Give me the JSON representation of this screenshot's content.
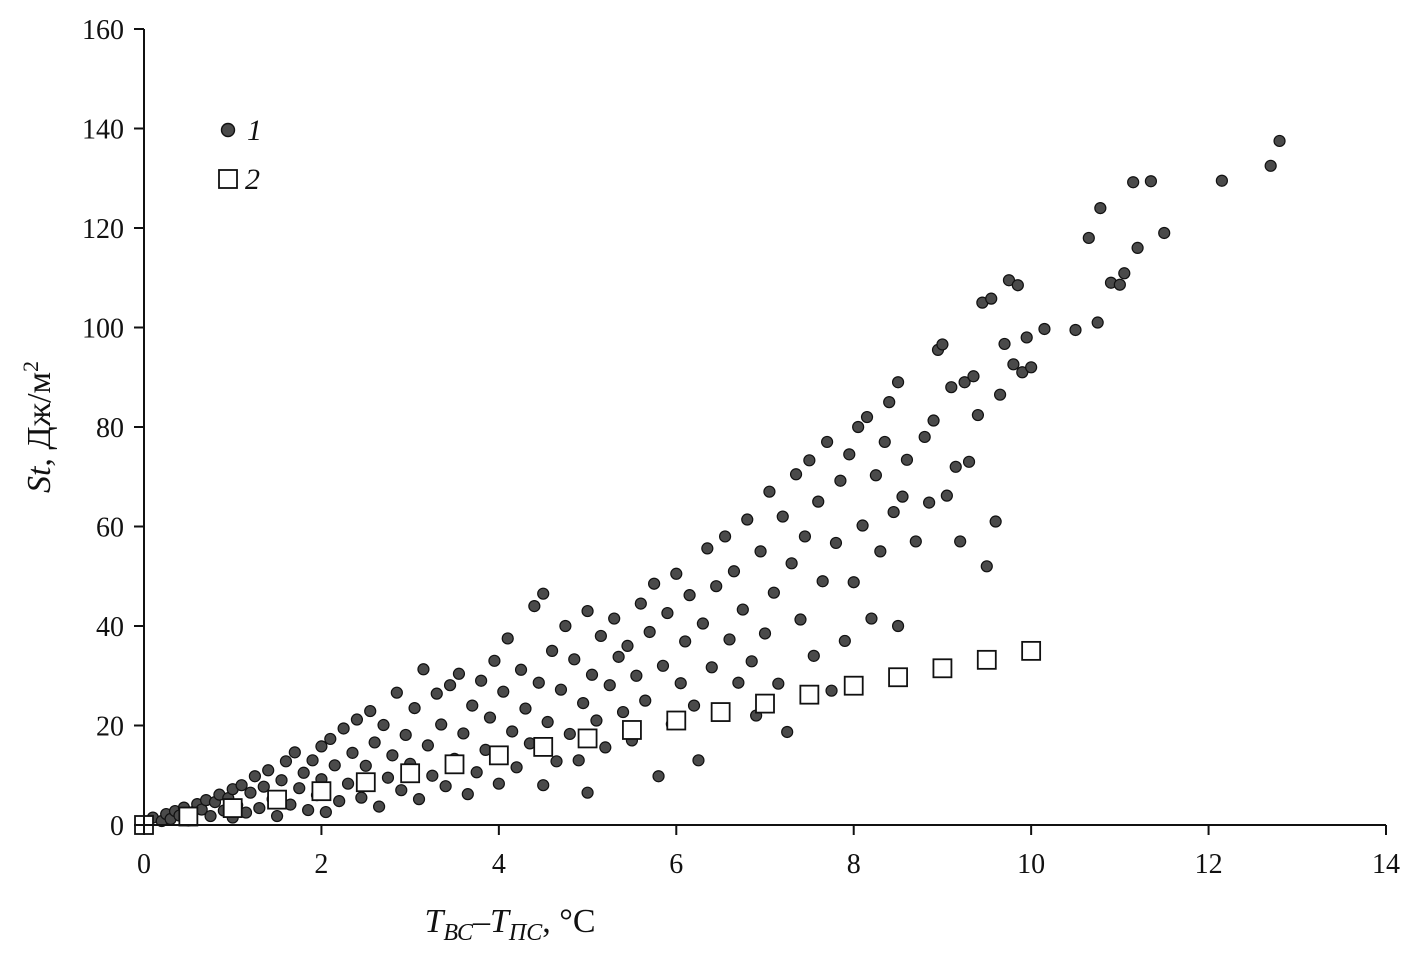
{
  "chart_data": {
    "type": "scatter",
    "xlim": [
      0,
      14
    ],
    "ylim": [
      0,
      160
    ],
    "x_ticks": [
      0,
      2,
      4,
      6,
      8,
      10,
      12,
      14
    ],
    "y_ticks": [
      0,
      20,
      40,
      60,
      80,
      100,
      120,
      140,
      160
    ],
    "grid": false,
    "legend_position": "top-left",
    "xlabel": {
      "t1": "T",
      "s1": "ВС",
      "dash": "–",
      "t2": "T",
      "s2": "ПС",
      "unit": ", °C"
    },
    "ylabel": {
      "sym": "St",
      "unit": ", Дж/м",
      "sup": "2"
    },
    "colors": {
      "series1_fill": "#4a4a4a",
      "series1_stroke": "#111111",
      "series2_fill": "#ffffff",
      "series2_stroke": "#111111",
      "axis": "#111111"
    },
    "series": [
      {
        "name": "1",
        "marker": "circle",
        "points": [
          [
            0.1,
            1.5
          ],
          [
            0.2,
            0.8
          ],
          [
            0.25,
            2.2
          ],
          [
            0.3,
            1.2
          ],
          [
            0.35,
            2.8
          ],
          [
            0.4,
            1.9
          ],
          [
            0.45,
            3.5
          ],
          [
            0.5,
            0.9
          ],
          [
            0.55,
            2.6
          ],
          [
            0.6,
            4.2
          ],
          [
            0.65,
            3.1
          ],
          [
            0.7,
            5.0
          ],
          [
            0.75,
            1.8
          ],
          [
            0.8,
            4.6
          ],
          [
            0.85,
            6.1
          ],
          [
            0.9,
            2.9
          ],
          [
            0.95,
            5.4
          ],
          [
            1.0,
            7.2
          ],
          [
            1.0,
            1.5
          ],
          [
            1.05,
            4.0
          ],
          [
            1.1,
            8.0
          ],
          [
            1.15,
            2.5
          ],
          [
            1.2,
            6.5
          ],
          [
            1.25,
            9.8
          ],
          [
            1.3,
            3.4
          ],
          [
            1.35,
            7.7
          ],
          [
            1.4,
            11.0
          ],
          [
            1.45,
            5.2
          ],
          [
            1.5,
            1.8
          ],
          [
            1.55,
            9.0
          ],
          [
            1.6,
            12.8
          ],
          [
            1.65,
            4.1
          ],
          [
            1.7,
            14.6
          ],
          [
            1.75,
            7.4
          ],
          [
            1.8,
            10.5
          ],
          [
            1.85,
            3.0
          ],
          [
            1.9,
            13.0
          ],
          [
            1.95,
            6.0
          ],
          [
            2.0,
            15.8
          ],
          [
            2.0,
            9.2
          ],
          [
            2.05,
            2.6
          ],
          [
            2.1,
            17.3
          ],
          [
            2.15,
            12.0
          ],
          [
            2.2,
            4.8
          ],
          [
            2.25,
            19.4
          ],
          [
            2.3,
            8.3
          ],
          [
            2.35,
            14.5
          ],
          [
            2.4,
            21.2
          ],
          [
            2.45,
            5.5
          ],
          [
            2.5,
            11.9
          ],
          [
            2.55,
            22.9
          ],
          [
            2.6,
            16.6
          ],
          [
            2.65,
            3.7
          ],
          [
            2.7,
            20.1
          ],
          [
            2.75,
            9.5
          ],
          [
            2.8,
            14.0
          ],
          [
            2.85,
            26.6
          ],
          [
            2.9,
            7.0
          ],
          [
            2.95,
            18.1
          ],
          [
            3.0,
            12.3
          ],
          [
            3.05,
            23.5
          ],
          [
            3.1,
            5.2
          ],
          [
            3.15,
            31.3
          ],
          [
            3.2,
            16.0
          ],
          [
            3.25,
            9.9
          ],
          [
            3.3,
            26.4
          ],
          [
            3.35,
            20.2
          ],
          [
            3.4,
            7.8
          ],
          [
            3.45,
            28.1
          ],
          [
            3.5,
            13.3
          ],
          [
            3.55,
            30.4
          ],
          [
            3.6,
            18.4
          ],
          [
            3.65,
            6.2
          ],
          [
            3.7,
            24.0
          ],
          [
            3.75,
            10.6
          ],
          [
            3.8,
            29.0
          ],
          [
            3.85,
            15.1
          ],
          [
            3.9,
            21.6
          ],
          [
            3.95,
            33.0
          ],
          [
            4.0,
            8.3
          ],
          [
            4.05,
            26.8
          ],
          [
            4.1,
            37.5
          ],
          [
            4.15,
            18.8
          ],
          [
            4.2,
            11.6
          ],
          [
            4.25,
            31.2
          ],
          [
            4.3,
            23.4
          ],
          [
            4.35,
            16.4
          ],
          [
            4.4,
            44.0
          ],
          [
            4.45,
            28.6
          ],
          [
            4.5,
            8.0
          ],
          [
            4.5,
            46.5
          ],
          [
            4.55,
            20.7
          ],
          [
            4.6,
            35.0
          ],
          [
            4.65,
            12.8
          ],
          [
            4.7,
            27.2
          ],
          [
            4.75,
            40.0
          ],
          [
            4.8,
            18.3
          ],
          [
            4.85,
            33.3
          ],
          [
            4.9,
            13.0
          ],
          [
            4.95,
            24.5
          ],
          [
            5.0,
            6.5
          ],
          [
            5.0,
            43.0
          ],
          [
            5.05,
            30.2
          ],
          [
            5.1,
            21.0
          ],
          [
            5.15,
            38.0
          ],
          [
            5.2,
            15.6
          ],
          [
            5.25,
            28.1
          ],
          [
            5.3,
            41.5
          ],
          [
            5.35,
            33.8
          ],
          [
            5.4,
            22.7
          ],
          [
            5.45,
            36.0
          ],
          [
            5.5,
            17.0
          ],
          [
            5.55,
            30.0
          ],
          [
            5.6,
            44.5
          ],
          [
            5.65,
            25.0
          ],
          [
            5.7,
            38.8
          ],
          [
            5.75,
            48.5
          ],
          [
            5.8,
            9.8
          ],
          [
            5.85,
            32.0
          ],
          [
            5.9,
            42.6
          ],
          [
            5.95,
            20.3
          ],
          [
            6.0,
            50.5
          ],
          [
            6.05,
            28.5
          ],
          [
            6.1,
            36.9
          ],
          [
            6.15,
            46.2
          ],
          [
            6.2,
            24.0
          ],
          [
            6.25,
            13.0
          ],
          [
            6.3,
            40.5
          ],
          [
            6.35,
            55.6
          ],
          [
            6.4,
            31.7
          ],
          [
            6.45,
            48.0
          ],
          [
            6.5,
            22.0
          ],
          [
            6.55,
            58.0
          ],
          [
            6.6,
            37.3
          ],
          [
            6.65,
            51.0
          ],
          [
            6.7,
            28.6
          ],
          [
            6.75,
            43.3
          ],
          [
            6.8,
            61.4
          ],
          [
            6.85,
            32.9
          ],
          [
            6.9,
            22.0
          ],
          [
            6.95,
            55.0
          ],
          [
            7.0,
            38.5
          ],
          [
            7.05,
            67.0
          ],
          [
            7.1,
            46.7
          ],
          [
            7.15,
            28.4
          ],
          [
            7.2,
            62.0
          ],
          [
            7.25,
            18.7
          ],
          [
            7.3,
            52.6
          ],
          [
            7.35,
            70.5
          ],
          [
            7.4,
            41.3
          ],
          [
            7.45,
            58.0
          ],
          [
            7.5,
            73.3
          ],
          [
            7.55,
            34.0
          ],
          [
            7.6,
            65.0
          ],
          [
            7.65,
            49.0
          ],
          [
            7.7,
            77.0
          ],
          [
            7.75,
            27.0
          ],
          [
            7.8,
            56.7
          ],
          [
            7.85,
            69.2
          ],
          [
            7.9,
            37.0
          ],
          [
            7.95,
            74.5
          ],
          [
            8.0,
            48.8
          ],
          [
            8.05,
            80.0
          ],
          [
            8.1,
            60.2
          ],
          [
            8.15,
            82.0
          ],
          [
            8.2,
            41.5
          ],
          [
            8.25,
            70.3
          ],
          [
            8.3,
            55.0
          ],
          [
            8.35,
            77.0
          ],
          [
            8.4,
            85.0
          ],
          [
            8.45,
            62.9
          ],
          [
            8.5,
            40.0
          ],
          [
            8.5,
            89.0
          ],
          [
            8.55,
            66.0
          ],
          [
            8.6,
            73.4
          ],
          [
            8.7,
            57.0
          ],
          [
            8.8,
            78.0
          ],
          [
            8.85,
            64.8
          ],
          [
            8.9,
            81.3
          ],
          [
            8.95,
            95.5
          ],
          [
            9.0,
            96.6
          ],
          [
            9.05,
            66.2
          ],
          [
            9.1,
            88.0
          ],
          [
            9.15,
            72.0
          ],
          [
            9.2,
            57.0
          ],
          [
            9.25,
            89.0
          ],
          [
            9.3,
            73.0
          ],
          [
            9.35,
            90.2
          ],
          [
            9.4,
            82.4
          ],
          [
            9.45,
            105.0
          ],
          [
            9.5,
            52.0
          ],
          [
            9.55,
            105.8
          ],
          [
            9.6,
            61.0
          ],
          [
            9.65,
            86.5
          ],
          [
            9.7,
            96.7
          ],
          [
            9.75,
            109.5
          ],
          [
            9.8,
            92.6
          ],
          [
            9.85,
            108.5
          ],
          [
            9.9,
            91.0
          ],
          [
            9.95,
            98.0
          ],
          [
            10.0,
            92.0
          ],
          [
            10.15,
            99.7
          ],
          [
            10.5,
            99.5
          ],
          [
            10.65,
            118.0
          ],
          [
            10.75,
            101.0
          ],
          [
            10.78,
            124.0
          ],
          [
            10.9,
            109.0
          ],
          [
            11.0,
            108.6
          ],
          [
            11.05,
            110.9
          ],
          [
            11.15,
            129.2
          ],
          [
            11.2,
            116.0
          ],
          [
            11.35,
            129.4
          ],
          [
            11.5,
            119.0
          ],
          [
            12.15,
            129.5
          ],
          [
            12.7,
            132.5
          ],
          [
            12.8,
            137.5
          ]
        ]
      },
      {
        "name": "2",
        "marker": "square",
        "points": [
          [
            0,
            0
          ],
          [
            0.5,
            1.7
          ],
          [
            1.0,
            3.4
          ],
          [
            1.5,
            5.1
          ],
          [
            2.0,
            6.8
          ],
          [
            2.5,
            8.6
          ],
          [
            3.0,
            10.4
          ],
          [
            3.5,
            12.2
          ],
          [
            4.0,
            14.0
          ],
          [
            4.5,
            15.7
          ],
          [
            5.0,
            17.4
          ],
          [
            5.5,
            19.1
          ],
          [
            6.0,
            21.0
          ],
          [
            6.5,
            22.7
          ],
          [
            7.0,
            24.4
          ],
          [
            7.5,
            26.2
          ],
          [
            8.0,
            28.0
          ],
          [
            8.5,
            29.7
          ],
          [
            9.0,
            31.5
          ],
          [
            9.5,
            33.2
          ],
          [
            10.0,
            35.0
          ]
        ]
      }
    ]
  }
}
